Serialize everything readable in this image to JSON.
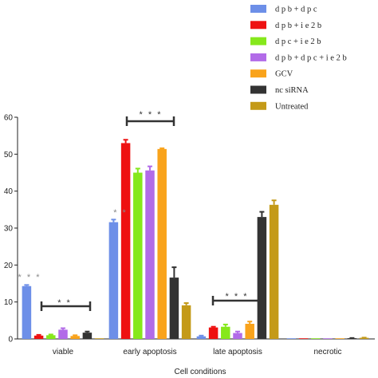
{
  "chart_data": {
    "type": "bar",
    "xlabel": "Cell conditions",
    "ylabel": "",
    "ylim": [
      0,
      60
    ],
    "yticks": [
      0,
      10,
      20,
      30,
      40,
      50,
      60
    ],
    "grid": false,
    "legend_position": "top-right",
    "categories": [
      "viable",
      "early apoptosis",
      "late apoptosis",
      "necrotic"
    ],
    "series": [
      {
        "name": "d p b + d p c",
        "color": "#6d8fe8",
        "values": [
          14.3,
          31.6,
          0.7,
          0
        ],
        "errors": [
          0.3,
          0.7,
          0.2,
          0
        ]
      },
      {
        "name": "d p b + i e 2 b",
        "color": "#ee1111",
        "values": [
          0.9,
          53.0,
          3.1,
          0
        ],
        "errors": [
          0.2,
          0.9,
          0.2,
          0
        ]
      },
      {
        "name": "d p c + i e 2 b",
        "color": "#86e81c",
        "values": [
          1.0,
          45.0,
          3.3,
          0
        ],
        "errors": [
          0.2,
          1.1,
          0.6,
          0
        ]
      },
      {
        "name": "d p b + d p c + i e 2 b",
        "color": "#b26be8",
        "values": [
          2.5,
          45.6,
          1.6,
          0
        ],
        "errors": [
          0.4,
          1.1,
          0.4,
          0
        ]
      },
      {
        "name": "GCV",
        "color": "#f9a31b",
        "values": [
          0.8,
          51.4,
          4.1,
          0
        ],
        "errors": [
          0.2,
          0.2,
          0.6,
          0
        ]
      },
      {
        "name": "nc siRNA",
        "color": "#333333",
        "values": [
          1.7,
          16.6,
          33.0,
          0.2
        ],
        "errors": [
          0.3,
          2.8,
          1.4,
          0.05
        ]
      },
      {
        "name": "Untreated",
        "color": "#c49a18",
        "values": [
          0,
          9.1,
          36.3,
          0.3
        ],
        "errors": [
          0,
          0.6,
          1.2,
          0.05
        ]
      }
    ],
    "annotations": [
      {
        "text": "* * *",
        "category": "viable",
        "series": "d p b + d p c"
      },
      {
        "text": "* *",
        "category": "viable",
        "bracket": true
      },
      {
        "text": "* *",
        "category": "early apoptosis",
        "series": "d p b + d p c"
      },
      {
        "text": "* * *",
        "category": "early apoptosis",
        "bracket": true
      },
      {
        "text": "* * *",
        "category": "late apoptosis",
        "bracket": true
      }
    ]
  }
}
